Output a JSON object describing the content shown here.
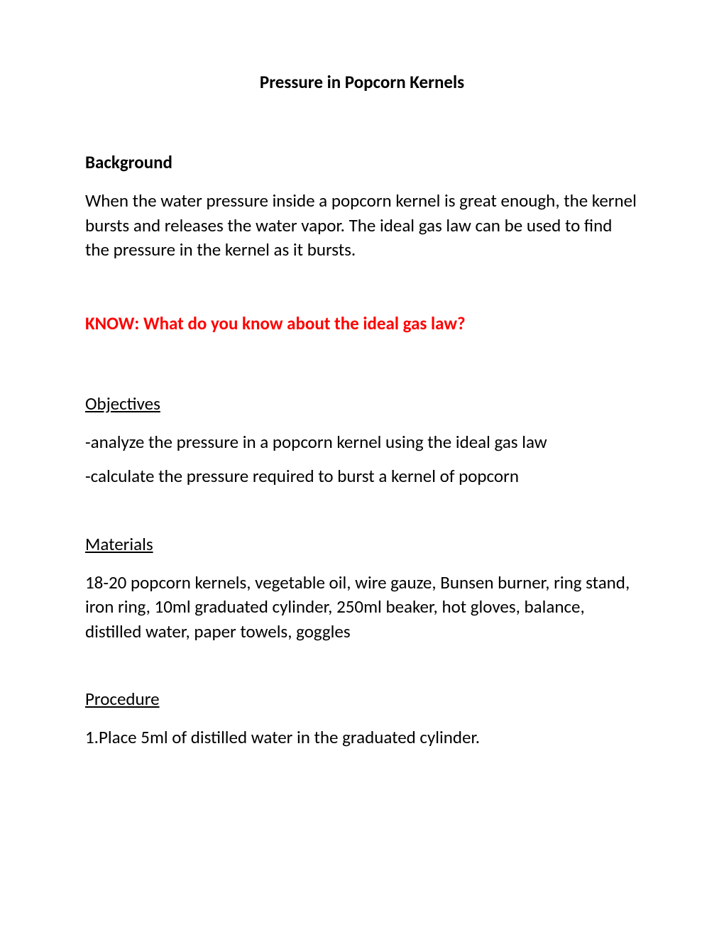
{
  "title": "Pressure in Popcorn Kernels",
  "background": {
    "heading": "Background",
    "text": "When the water pressure inside a popcorn kernel is great enough, the kernel bursts and releases the water vapor. The ideal gas law can be used to find the pressure in the kernel as it bursts."
  },
  "know": {
    "text": "KNOW: What do you know about the ideal gas law?"
  },
  "objectives": {
    "heading": "Objectives",
    "items": [
      "-analyze the pressure in a popcorn kernel using the ideal gas law",
      "-calculate the pressure required to burst a kernel of popcorn"
    ]
  },
  "materials": {
    "heading": "Materials",
    "text": "18-20 popcorn kernels, vegetable oil, wire gauze, Bunsen burner, ring stand, iron ring, 10ml graduated cylinder, 250ml beaker, hot gloves, balance, distilled water, paper towels, goggles"
  },
  "procedure": {
    "heading": "Procedure",
    "items": [
      "1.Place 5ml of distilled water in the graduated cylinder."
    ]
  },
  "colors": {
    "text": "#000000",
    "red": "#ff0000",
    "background": "#ffffff"
  },
  "typography": {
    "title_fontsize": 25,
    "heading_fontsize": 25,
    "body_fontsize": 25,
    "font_family": "Calibri"
  }
}
